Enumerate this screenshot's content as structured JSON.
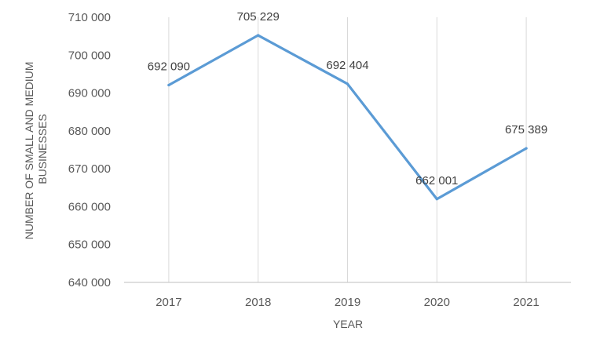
{
  "chart_data": {
    "type": "line",
    "title": "",
    "xlabel": "YEAR",
    "ylabel_lines": [
      "NUMBER OF SMALL AND MEDIUM",
      "BUSINESSES"
    ],
    "categories": [
      "2017",
      "2018",
      "2019",
      "2020",
      "2021"
    ],
    "series": [
      {
        "values": [
          692090,
          705229,
          692404,
          662001,
          675389
        ],
        "color": "#5b9bd5"
      }
    ],
    "data_labels": [
      "692 090",
      "705 229",
      "692 404",
      "662 001",
      "675 389"
    ],
    "ylim": [
      640000,
      710000
    ],
    "yticks": [
      640000,
      650000,
      660000,
      670000,
      680000,
      690000,
      700000,
      710000
    ],
    "ytick_labels": [
      "640 000",
      "650 000",
      "660 000",
      "670 000",
      "680 000",
      "690 000",
      "700 000",
      "710 000"
    ],
    "grid": "vertical",
    "legend": "none",
    "colors": {
      "line": "#5b9bd5",
      "grid": "#d9d9d9",
      "axis": "#bfbfbf"
    }
  }
}
